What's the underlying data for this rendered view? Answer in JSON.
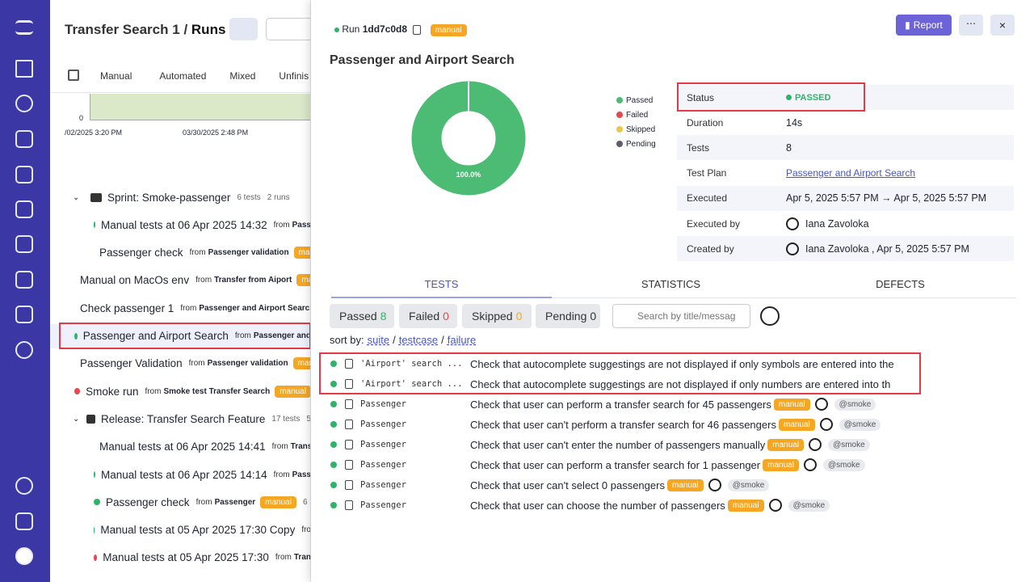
{
  "runs_panel": {
    "breadcrumb": {
      "project": "Transfer Search 1",
      "separator": "/",
      "page": "Runs"
    },
    "filters": [
      "Manual",
      "Automated",
      "Mixed",
      "Unfinis"
    ],
    "mini_chart": {
      "y_tick": "0",
      "x_labels": [
        "/02/2025 3:20 PM",
        "03/30/2025 2:48 PM"
      ]
    },
    "items": [
      {
        "kind": "folder",
        "level": 0,
        "title": "Sprint: Smoke-passenger",
        "tests": "6 tests",
        "runs": "2 runs"
      },
      {
        "kind": "run",
        "level": 1,
        "status": "passed",
        "title": "Manual tests at 06 Apr 2025 14:32",
        "from": "from",
        "source": "Pass"
      },
      {
        "kind": "run",
        "level": 1,
        "status": "passed",
        "title": "Passenger check",
        "from": "from",
        "source": "Passenger validation",
        "badge": "manual"
      },
      {
        "kind": "run",
        "level": 0,
        "status": "failed",
        "title": "Manual on MacOs env",
        "from": "from",
        "source": "Transfer from Aiport",
        "badge": "manual"
      },
      {
        "kind": "run",
        "level": 0,
        "status": "failed",
        "title": "Check passenger 1",
        "from": "from",
        "source": "Passenger and Airport Search"
      },
      {
        "kind": "run",
        "level": 0,
        "status": "passed",
        "selected": true,
        "title": "Passenger and Airport Search",
        "from": "from",
        "source": "Passenger and"
      },
      {
        "kind": "run",
        "level": 0,
        "status": "passed",
        "title": "Passenger Validation",
        "from": "from",
        "source": "Passenger validation",
        "badge": "manual"
      },
      {
        "kind": "run",
        "level": 0,
        "status": "failed",
        "title": "Smoke run",
        "from": "from",
        "source": "Smoke test Transfer Search",
        "badge": "manual"
      },
      {
        "kind": "folder",
        "level": 0,
        "title": "Release: Transfer Search Feature",
        "tests": "17 tests",
        "runs": "5"
      },
      {
        "kind": "run",
        "level": 1,
        "status": "partial",
        "title": "Manual tests at 06 Apr 2025 14:41",
        "from": "from",
        "source": "Trans"
      },
      {
        "kind": "run",
        "level": 1,
        "status": "passed",
        "title": "Manual tests at 06 Apr 2025 14:14",
        "from": "from",
        "source": "Pass"
      },
      {
        "kind": "run",
        "level": 1,
        "status": "passed",
        "title": "Passenger check",
        "from": "from",
        "source": "Passenger",
        "badge": "manual",
        "extra": "6"
      },
      {
        "kind": "run",
        "level": 1,
        "status": "passed",
        "title": "Manual tests at 05 Apr 2025 17:30 Copy",
        "from": "fro"
      },
      {
        "kind": "run",
        "level": 1,
        "status": "failed",
        "title": "Manual tests at 05 Apr 2025 17:30",
        "from": "from",
        "source": "Tran"
      }
    ]
  },
  "run": {
    "run_label": "Run",
    "run_id": "1dd7c0d8",
    "badge": "manual",
    "report_button": "Report",
    "title": "Passenger and Airport Search",
    "chart": {
      "value": 100,
      "label": "100.0%",
      "color": "#4cbb74"
    },
    "legend": [
      {
        "name": "Passed",
        "color": "#4cbb74"
      },
      {
        "name": "Failed",
        "color": "#e5484d"
      },
      {
        "name": "Skipped",
        "color": "#e6c84a"
      },
      {
        "name": "Pending",
        "color": "#5b5f6b"
      }
    ],
    "info": [
      {
        "label": "Status",
        "value": "PASSED"
      },
      {
        "label": "Duration",
        "value": "14s"
      },
      {
        "label": "Tests",
        "value": "8"
      },
      {
        "label": "Test Plan",
        "value": "Passenger and Airport Search"
      },
      {
        "label": "Executed",
        "value": "Apr 5, 2025 5:57 PM → Apr 5, 2025 5:57 PM"
      },
      {
        "label": "Executed by",
        "value": "Iana Zavoloka"
      },
      {
        "label": "Created by",
        "value": "Iana Zavoloka , Apr 5, 2025 5:57 PM"
      }
    ],
    "tabs": [
      "TESTS",
      "STATISTICS",
      "DEFECTS"
    ],
    "counters": [
      {
        "label": "Passed",
        "count": 8
      },
      {
        "label": "Failed",
        "count": 0
      },
      {
        "label": "Skipped",
        "count": 0
      },
      {
        "label": "Pending",
        "count": 0
      }
    ],
    "search_placeholder": "Search by title/messag",
    "sort": {
      "label": "sort by:",
      "options": [
        "suite",
        "testcase",
        "failure"
      ],
      "separator": "/"
    },
    "tests": [
      {
        "suite": "'Airport' search ...",
        "title": "Check that autocomplete suggestings are not displayed if only symbols are entered into the"
      },
      {
        "suite": "'Airport' search ...",
        "title": "Check that autocomplete suggestings are not displayed if only numbers are entered into th"
      },
      {
        "suite": "Passenger",
        "title": "Check that user can perform a transfer search for 45 passengers",
        "badge": "manual",
        "tag": "@smoke"
      },
      {
        "suite": "Passenger",
        "title": "Check that user can't perform a transfer search for 46 passengers",
        "badge": "manual",
        "tag": "@smoke"
      },
      {
        "suite": "Passenger",
        "title": "Check that user can't enter the number of passengers manually",
        "badge": "manual",
        "tag": "@smoke"
      },
      {
        "suite": "Passenger",
        "title": "Check that user can perform a transfer search for 1 passenger",
        "badge": "manual",
        "tag": "@smoke"
      },
      {
        "suite": "Passenger",
        "title": "Check that user can't select 0 passengers",
        "badge": "manual",
        "tag": "@smoke"
      },
      {
        "suite": "Passenger",
        "title": "Check that user can choose the number of passengers",
        "badge": "manual",
        "tag": "@smoke"
      }
    ]
  }
}
